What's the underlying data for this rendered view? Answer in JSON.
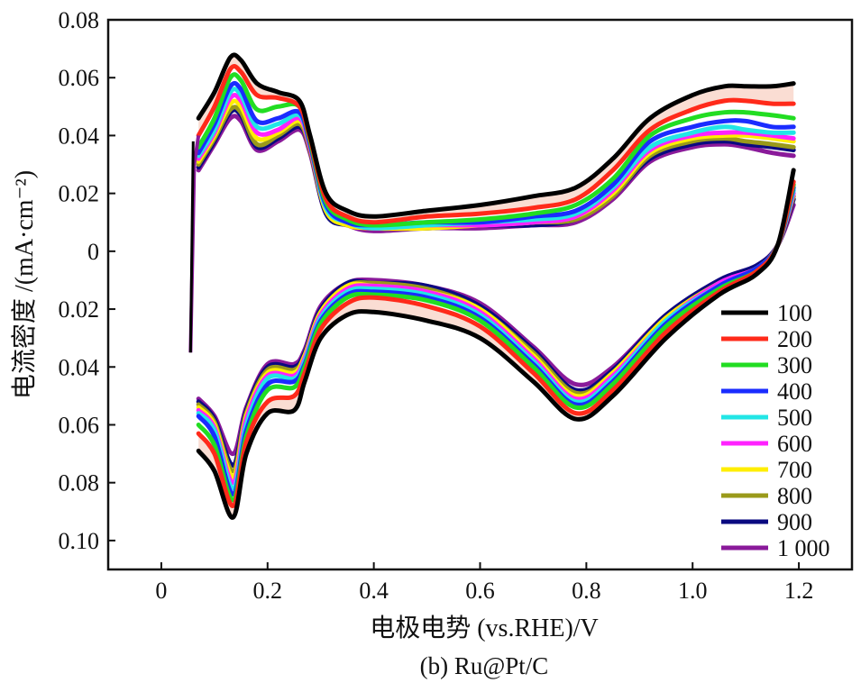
{
  "chart_data": {
    "type": "line",
    "caption": "(b) Ru@Pt/C",
    "xlabel": "电极电势 (vs.RHE)/V",
    "ylabel": "电流密度 /(mA·cm⁻²)",
    "xlim": [
      -0.1,
      1.3
    ],
    "ylim": [
      -0.11,
      0.08
    ],
    "xticks": [
      {
        "value": 0,
        "label": "0"
      },
      {
        "value": 0.2,
        "label": "0.2"
      },
      {
        "value": 0.4,
        "label": "0.4"
      },
      {
        "value": 0.6,
        "label": "0.6"
      },
      {
        "value": 0.8,
        "label": "0.8"
      },
      {
        "value": 1.0,
        "label": "1.0"
      },
      {
        "value": 1.2,
        "label": "1.2"
      }
    ],
    "yticks": [
      {
        "value": 0.08,
        "label": "0.08"
      },
      {
        "value": 0.06,
        "label": "0.06"
      },
      {
        "value": 0.04,
        "label": "0.04"
      },
      {
        "value": 0.02,
        "label": "0.02"
      },
      {
        "value": 0,
        "label": "0"
      },
      {
        "value": -0.02,
        "label": "0.02"
      },
      {
        "value": -0.04,
        "label": "0.04"
      },
      {
        "value": -0.06,
        "label": "0.06"
      },
      {
        "value": -0.08,
        "label": "0.08"
      },
      {
        "value": -0.1,
        "label": "0.10"
      }
    ],
    "grid": false,
    "legend_position": "bottom-right",
    "series": [
      {
        "name": "100",
        "color": "#000000",
        "anodic": {
          "x": [
            0.07,
            0.1,
            0.13,
            0.15,
            0.18,
            0.22,
            0.26,
            0.28,
            0.31,
            0.35,
            0.4,
            0.5,
            0.6,
            0.7,
            0.78,
            0.85,
            0.92,
            1.0,
            1.06,
            1.1,
            1.15,
            1.19
          ],
          "y": [
            0.046,
            0.055,
            0.067,
            0.066,
            0.058,
            0.055,
            0.052,
            0.04,
            0.02,
            0.014,
            0.012,
            0.014,
            0.016,
            0.019,
            0.022,
            0.032,
            0.046,
            0.054,
            0.057,
            0.057,
            0.057,
            0.058
          ]
        },
        "cathodic": {
          "x": [
            0.07,
            0.1,
            0.135,
            0.16,
            0.2,
            0.25,
            0.27,
            0.3,
            0.35,
            0.4,
            0.5,
            0.6,
            0.7,
            0.78,
            0.85,
            0.95,
            1.05,
            1.12,
            1.16,
            1.19
          ],
          "y": [
            -0.069,
            -0.076,
            -0.092,
            -0.07,
            -0.056,
            -0.055,
            -0.045,
            -0.03,
            -0.022,
            -0.021,
            -0.024,
            -0.03,
            -0.045,
            -0.058,
            -0.05,
            -0.03,
            -0.015,
            -0.008,
            0.002,
            0.028
          ]
        }
      },
      {
        "name": "200",
        "color": "#ff2a1a",
        "anodic": {
          "x": [
            0.07,
            0.1,
            0.13,
            0.15,
            0.18,
            0.22,
            0.26,
            0.28,
            0.31,
            0.35,
            0.4,
            0.5,
            0.6,
            0.7,
            0.78,
            0.85,
            0.92,
            1.0,
            1.06,
            1.1,
            1.15,
            1.19
          ],
          "y": [
            0.04,
            0.05,
            0.063,
            0.062,
            0.054,
            0.053,
            0.05,
            0.039,
            0.018,
            0.012,
            0.01,
            0.012,
            0.013,
            0.015,
            0.018,
            0.028,
            0.042,
            0.049,
            0.052,
            0.052,
            0.051,
            0.051
          ]
        },
        "cathodic": {
          "x": [
            0.07,
            0.1,
            0.135,
            0.16,
            0.2,
            0.25,
            0.27,
            0.3,
            0.35,
            0.4,
            0.5,
            0.6,
            0.7,
            0.78,
            0.85,
            0.95,
            1.05,
            1.12,
            1.16,
            1.19
          ],
          "y": [
            -0.063,
            -0.07,
            -0.088,
            -0.066,
            -0.052,
            -0.05,
            -0.042,
            -0.027,
            -0.018,
            -0.016,
            -0.019,
            -0.026,
            -0.042,
            -0.056,
            -0.048,
            -0.028,
            -0.014,
            -0.007,
            0.002,
            0.024
          ]
        }
      },
      {
        "name": "300",
        "color": "#22dd22",
        "anodic": {
          "x": [
            0.07,
            0.1,
            0.13,
            0.15,
            0.18,
            0.22,
            0.26,
            0.28,
            0.31,
            0.35,
            0.4,
            0.5,
            0.6,
            0.7,
            0.78,
            0.85,
            0.92,
            1.0,
            1.06,
            1.1,
            1.15,
            1.19
          ],
          "y": [
            0.036,
            0.046,
            0.06,
            0.059,
            0.049,
            0.05,
            0.05,
            0.038,
            0.017,
            0.011,
            0.009,
            0.01,
            0.011,
            0.013,
            0.016,
            0.025,
            0.04,
            0.046,
            0.048,
            0.048,
            0.047,
            0.046
          ]
        },
        "cathodic": {
          "x": [
            0.07,
            0.1,
            0.135,
            0.16,
            0.2,
            0.25,
            0.27,
            0.3,
            0.35,
            0.4,
            0.5,
            0.6,
            0.7,
            0.78,
            0.85,
            0.95,
            1.05,
            1.12,
            1.16,
            1.19
          ],
          "y": [
            -0.06,
            -0.067,
            -0.086,
            -0.064,
            -0.048,
            -0.047,
            -0.04,
            -0.025,
            -0.016,
            -0.015,
            -0.017,
            -0.024,
            -0.04,
            -0.054,
            -0.046,
            -0.026,
            -0.013,
            -0.007,
            0.002,
            0.023
          ]
        }
      },
      {
        "name": "400",
        "color": "#1a2cff",
        "anodic": {
          "x": [
            0.07,
            0.1,
            0.13,
            0.15,
            0.18,
            0.22,
            0.26,
            0.28,
            0.31,
            0.35,
            0.4,
            0.5,
            0.6,
            0.7,
            0.78,
            0.85,
            0.92,
            1.0,
            1.06,
            1.1,
            1.15,
            1.19
          ],
          "y": [
            0.034,
            0.044,
            0.057,
            0.056,
            0.045,
            0.046,
            0.048,
            0.037,
            0.016,
            0.01,
            0.009,
            0.01,
            0.01,
            0.012,
            0.014,
            0.023,
            0.038,
            0.043,
            0.045,
            0.045,
            0.043,
            0.043
          ]
        },
        "cathodic": {
          "x": [
            0.07,
            0.1,
            0.135,
            0.16,
            0.2,
            0.25,
            0.27,
            0.3,
            0.35,
            0.4,
            0.5,
            0.6,
            0.7,
            0.78,
            0.85,
            0.95,
            1.05,
            1.12,
            1.16,
            1.19
          ],
          "y": [
            -0.057,
            -0.064,
            -0.084,
            -0.062,
            -0.046,
            -0.045,
            -0.039,
            -0.024,
            -0.015,
            -0.014,
            -0.016,
            -0.023,
            -0.039,
            -0.053,
            -0.045,
            -0.025,
            -0.012,
            -0.006,
            0.002,
            0.022
          ]
        }
      },
      {
        "name": "500",
        "color": "#22e6e6",
        "anodic": {
          "x": [
            0.07,
            0.1,
            0.13,
            0.15,
            0.18,
            0.22,
            0.26,
            0.28,
            0.31,
            0.35,
            0.4,
            0.5,
            0.6,
            0.7,
            0.78,
            0.85,
            0.92,
            1.0,
            1.06,
            1.1,
            1.15,
            1.19
          ],
          "y": [
            0.033,
            0.042,
            0.055,
            0.054,
            0.043,
            0.044,
            0.047,
            0.037,
            0.015,
            0.01,
            0.008,
            0.009,
            0.01,
            0.011,
            0.013,
            0.022,
            0.036,
            0.041,
            0.043,
            0.042,
            0.041,
            0.041
          ]
        },
        "cathodic": {
          "x": [
            0.07,
            0.1,
            0.135,
            0.16,
            0.2,
            0.25,
            0.27,
            0.3,
            0.35,
            0.4,
            0.5,
            0.6,
            0.7,
            0.78,
            0.85,
            0.95,
            1.05,
            1.12,
            1.16,
            1.19
          ],
          "y": [
            -0.056,
            -0.062,
            -0.082,
            -0.06,
            -0.044,
            -0.044,
            -0.038,
            -0.023,
            -0.014,
            -0.013,
            -0.015,
            -0.022,
            -0.038,
            -0.052,
            -0.044,
            -0.024,
            -0.012,
            -0.006,
            0.002,
            0.021
          ]
        }
      },
      {
        "name": "600",
        "color": "#ff22ff",
        "anodic": {
          "x": [
            0.07,
            0.1,
            0.13,
            0.15,
            0.18,
            0.22,
            0.26,
            0.28,
            0.31,
            0.35,
            0.4,
            0.5,
            0.6,
            0.7,
            0.78,
            0.85,
            0.92,
            1.0,
            1.06,
            1.1,
            1.15,
            1.19
          ],
          "y": [
            0.032,
            0.041,
            0.053,
            0.052,
            0.041,
            0.042,
            0.046,
            0.036,
            0.015,
            0.01,
            0.008,
            0.009,
            0.009,
            0.01,
            0.012,
            0.021,
            0.035,
            0.04,
            0.041,
            0.041,
            0.04,
            0.039
          ]
        },
        "cathodic": {
          "x": [
            0.07,
            0.1,
            0.135,
            0.16,
            0.2,
            0.25,
            0.27,
            0.3,
            0.35,
            0.4,
            0.5,
            0.6,
            0.7,
            0.78,
            0.85,
            0.95,
            1.05,
            1.12,
            1.16,
            1.19
          ],
          "y": [
            -0.055,
            -0.061,
            -0.08,
            -0.058,
            -0.043,
            -0.043,
            -0.037,
            -0.022,
            -0.013,
            -0.012,
            -0.014,
            -0.021,
            -0.037,
            -0.051,
            -0.043,
            -0.024,
            -0.011,
            -0.006,
            0.002,
            0.02
          ]
        }
      },
      {
        "name": "700",
        "color": "#ffee00",
        "anodic": {
          "x": [
            0.07,
            0.1,
            0.13,
            0.15,
            0.18,
            0.22,
            0.26,
            0.28,
            0.31,
            0.35,
            0.4,
            0.5,
            0.6,
            0.7,
            0.78,
            0.85,
            0.92,
            1.0,
            1.06,
            1.1,
            1.15,
            1.19
          ],
          "y": [
            0.031,
            0.04,
            0.051,
            0.05,
            0.039,
            0.041,
            0.045,
            0.036,
            0.014,
            0.009,
            0.008,
            0.008,
            0.009,
            0.01,
            0.012,
            0.02,
            0.034,
            0.039,
            0.04,
            0.04,
            0.039,
            0.038
          ]
        },
        "cathodic": {
          "x": [
            0.07,
            0.1,
            0.135,
            0.16,
            0.2,
            0.25,
            0.27,
            0.3,
            0.35,
            0.4,
            0.5,
            0.6,
            0.7,
            0.78,
            0.85,
            0.95,
            1.05,
            1.12,
            1.16,
            1.19
          ],
          "y": [
            -0.054,
            -0.06,
            -0.078,
            -0.057,
            -0.042,
            -0.042,
            -0.036,
            -0.021,
            -0.012,
            -0.012,
            -0.014,
            -0.02,
            -0.036,
            -0.05,
            -0.042,
            -0.023,
            -0.011,
            -0.006,
            0.002,
            0.02
          ]
        }
      },
      {
        "name": "800",
        "color": "#9a9a1a",
        "anodic": {
          "x": [
            0.07,
            0.1,
            0.13,
            0.15,
            0.18,
            0.22,
            0.26,
            0.28,
            0.31,
            0.35,
            0.4,
            0.5,
            0.6,
            0.7,
            0.78,
            0.85,
            0.92,
            1.0,
            1.06,
            1.1,
            1.15,
            1.19
          ],
          "y": [
            0.03,
            0.039,
            0.049,
            0.048,
            0.037,
            0.04,
            0.044,
            0.035,
            0.014,
            0.009,
            0.008,
            0.008,
            0.009,
            0.01,
            0.011,
            0.019,
            0.033,
            0.038,
            0.039,
            0.038,
            0.037,
            0.036
          ]
        },
        "cathodic": {
          "x": [
            0.07,
            0.1,
            0.135,
            0.16,
            0.2,
            0.25,
            0.27,
            0.3,
            0.35,
            0.4,
            0.5,
            0.6,
            0.7,
            0.78,
            0.85,
            0.95,
            1.05,
            1.12,
            1.16,
            1.19
          ],
          "y": [
            -0.053,
            -0.059,
            -0.076,
            -0.056,
            -0.041,
            -0.041,
            -0.036,
            -0.021,
            -0.012,
            -0.011,
            -0.013,
            -0.02,
            -0.035,
            -0.049,
            -0.042,
            -0.023,
            -0.011,
            -0.006,
            0.002,
            0.019
          ]
        }
      },
      {
        "name": "900",
        "color": "#0a0a80",
        "anodic": {
          "x": [
            0.07,
            0.1,
            0.13,
            0.15,
            0.18,
            0.22,
            0.26,
            0.28,
            0.31,
            0.35,
            0.4,
            0.5,
            0.6,
            0.7,
            0.78,
            0.85,
            0.92,
            1.0,
            1.06,
            1.1,
            1.15,
            1.19
          ],
          "y": [
            0.029,
            0.038,
            0.048,
            0.047,
            0.036,
            0.039,
            0.043,
            0.035,
            0.013,
            0.009,
            0.008,
            0.008,
            0.009,
            0.009,
            0.011,
            0.019,
            0.032,
            0.037,
            0.038,
            0.037,
            0.036,
            0.035
          ]
        },
        "cathodic": {
          "x": [
            0.07,
            0.1,
            0.135,
            0.16,
            0.2,
            0.25,
            0.27,
            0.3,
            0.35,
            0.4,
            0.5,
            0.6,
            0.7,
            0.78,
            0.85,
            0.95,
            1.05,
            1.12,
            1.16,
            1.19
          ],
          "y": [
            -0.052,
            -0.058,
            -0.074,
            -0.055,
            -0.04,
            -0.04,
            -0.035,
            -0.02,
            -0.011,
            -0.011,
            -0.012,
            -0.019,
            -0.034,
            -0.048,
            -0.041,
            -0.022,
            -0.01,
            -0.005,
            0.002,
            0.018
          ]
        }
      },
      {
        "name": "1 000",
        "color": "#8a1a9a",
        "anodic": {
          "x": [
            0.07,
            0.1,
            0.13,
            0.15,
            0.18,
            0.22,
            0.26,
            0.28,
            0.31,
            0.35,
            0.4,
            0.5,
            0.6,
            0.7,
            0.78,
            0.85,
            0.92,
            1.0,
            1.06,
            1.1,
            1.15,
            1.19
          ],
          "y": [
            0.028,
            0.037,
            0.046,
            0.045,
            0.035,
            0.038,
            0.042,
            0.034,
            0.013,
            0.009,
            0.007,
            0.008,
            0.008,
            0.009,
            0.01,
            0.018,
            0.031,
            0.036,
            0.037,
            0.036,
            0.034,
            0.033
          ]
        },
        "cathodic": {
          "x": [
            0.07,
            0.1,
            0.135,
            0.16,
            0.2,
            0.25,
            0.27,
            0.3,
            0.35,
            0.4,
            0.5,
            0.6,
            0.7,
            0.78,
            0.85,
            0.95,
            1.05,
            1.12,
            1.16,
            1.19
          ],
          "y": [
            -0.051,
            -0.057,
            -0.07,
            -0.054,
            -0.039,
            -0.039,
            -0.034,
            -0.019,
            -0.011,
            -0.01,
            -0.012,
            -0.018,
            -0.033,
            -0.046,
            -0.04,
            -0.022,
            -0.01,
            -0.005,
            0.002,
            0.016
          ]
        }
      }
    ]
  }
}
